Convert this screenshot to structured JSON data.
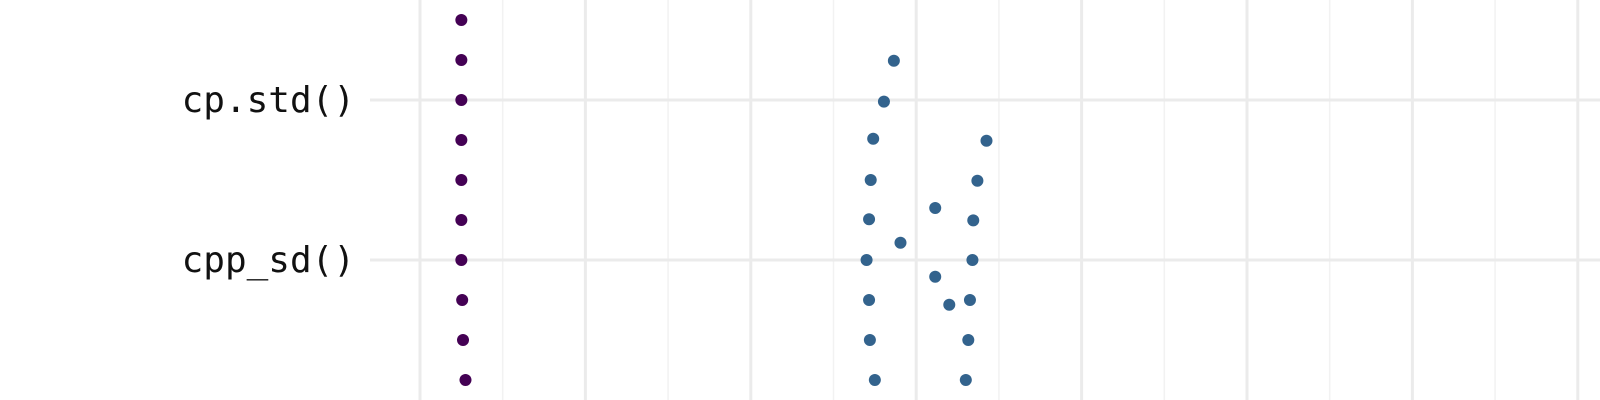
{
  "chart_data": {
    "type": "scatter",
    "title": "",
    "xlabel": "",
    "ylabel": "",
    "xlim": [
      0,
      14
    ],
    "ylim": [
      0,
      9.4
    ],
    "grid": true,
    "categories": [
      "cp.std()",
      "cpp_sd()"
    ],
    "category_y": [
      7.0,
      3.0
    ],
    "series": [
      {
        "color": "#440154",
        "points": [
          {
            "x": 0.5,
            "y": 9.0
          },
          {
            "x": 0.5,
            "y": 8.0
          },
          {
            "x": 0.5,
            "y": 7.0
          },
          {
            "x": 0.5,
            "y": 6.0
          },
          {
            "x": 0.5,
            "y": 5.0
          },
          {
            "x": 0.5,
            "y": 4.0
          },
          {
            "x": 0.5,
            "y": 3.0
          },
          {
            "x": 0.51,
            "y": 2.0
          },
          {
            "x": 0.52,
            "y": 1.0
          },
          {
            "x": 0.55,
            "y": 0.0
          }
        ]
      },
      {
        "color": "#33638d",
        "points": [
          {
            "x": 5.73,
            "y": 7.98
          },
          {
            "x": 5.61,
            "y": 6.96
          },
          {
            "x": 5.48,
            "y": 6.03
          },
          {
            "x": 6.85,
            "y": 5.98
          },
          {
            "x": 5.45,
            "y": 5.0
          },
          {
            "x": 6.74,
            "y": 4.98
          },
          {
            "x": 6.23,
            "y": 4.3
          },
          {
            "x": 5.43,
            "y": 4.02
          },
          {
            "x": 6.69,
            "y": 3.99
          },
          {
            "x": 5.81,
            "y": 3.43
          },
          {
            "x": 5.4,
            "y": 3.0
          },
          {
            "x": 6.68,
            "y": 3.0
          },
          {
            "x": 6.23,
            "y": 2.58
          },
          {
            "x": 5.43,
            "y": 2.0
          },
          {
            "x": 6.65,
            "y": 2.0
          },
          {
            "x": 6.4,
            "y": 1.88
          },
          {
            "x": 5.44,
            "y": 1.0
          },
          {
            "x": 6.63,
            "y": 1.0
          },
          {
            "x": 5.5,
            "y": 0.0
          },
          {
            "x": 6.6,
            "y": 0.0
          }
        ]
      }
    ]
  }
}
